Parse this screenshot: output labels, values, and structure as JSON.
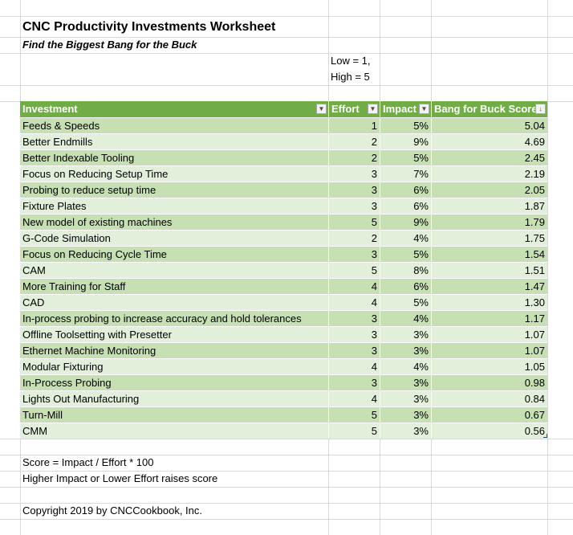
{
  "sheet": {
    "title": "CNC Productivity Investments Worksheet",
    "subtitle": "Find the Biggest Bang for the Buck",
    "scale_note_line1": "Low = 1,",
    "scale_note_line2": "High = 5"
  },
  "table": {
    "headers": {
      "investment": "Investment",
      "effort": "Effort",
      "impact": "Impact",
      "score": "Bang for Buck Score"
    },
    "rows": [
      {
        "investment": "Feeds & Speeds",
        "effort": "1",
        "impact": "5%",
        "score": "5.04"
      },
      {
        "investment": "Better Endmills",
        "effort": "2",
        "impact": "9%",
        "score": "4.69"
      },
      {
        "investment": "Better Indexable Tooling",
        "effort": "2",
        "impact": "5%",
        "score": "2.45"
      },
      {
        "investment": "Focus on Reducing Setup Time",
        "effort": "3",
        "impact": "7%",
        "score": "2.19"
      },
      {
        "investment": "Probing to reduce setup time",
        "effort": "3",
        "impact": "6%",
        "score": "2.05"
      },
      {
        "investment": "Fixture Plates",
        "effort": "3",
        "impact": "6%",
        "score": "1.87"
      },
      {
        "investment": "New model of existing machines",
        "effort": "5",
        "impact": "9%",
        "score": "1.79"
      },
      {
        "investment": "G-Code Simulation",
        "effort": "2",
        "impact": "4%",
        "score": "1.75"
      },
      {
        "investment": "Focus on Reducing Cycle Time",
        "effort": "3",
        "impact": "5%",
        "score": "1.54"
      },
      {
        "investment": "CAM",
        "effort": "5",
        "impact": "8%",
        "score": "1.51"
      },
      {
        "investment": "More Training for Staff",
        "effort": "4",
        "impact": "6%",
        "score": "1.47"
      },
      {
        "investment": "CAD",
        "effort": "4",
        "impact": "5%",
        "score": "1.30"
      },
      {
        "investment": "In-process probing to increase accuracy and hold tolerances",
        "effort": "3",
        "impact": "4%",
        "score": "1.17"
      },
      {
        "investment": "Offline Toolsetting with Presetter",
        "effort": "3",
        "impact": "3%",
        "score": "1.07"
      },
      {
        "investment": "Ethernet Machine Monitoring",
        "effort": "3",
        "impact": "3%",
        "score": "1.07"
      },
      {
        "investment": "Modular Fixturing",
        "effort": "4",
        "impact": "4%",
        "score": "1.05"
      },
      {
        "investment": "In-Process Probing",
        "effort": "3",
        "impact": "3%",
        "score": "0.98"
      },
      {
        "investment": "Lights Out Manufacturing",
        "effort": "4",
        "impact": "3%",
        "score": "0.84"
      },
      {
        "investment": "Turn-Mill",
        "effort": "5",
        "impact": "3%",
        "score": "0.67"
      },
      {
        "investment": "CMM",
        "effort": "5",
        "impact": "3%",
        "score": "0.56"
      }
    ]
  },
  "notes": {
    "formula": "Score = Impact / Effort * 100",
    "explanation": "Higher Impact or Lower Effort raises score",
    "copyright": "Copyright 2019 by CNCCookbook, Inc."
  },
  "colors": {
    "header": "#70ad47",
    "band_dark": "#c6e0b4",
    "band_light": "#e2efda",
    "gridline": "#d9d9d9"
  },
  "icons": {
    "filter": "filter-dropdown-icon",
    "sort": "sort-descending-filter-icon"
  }
}
